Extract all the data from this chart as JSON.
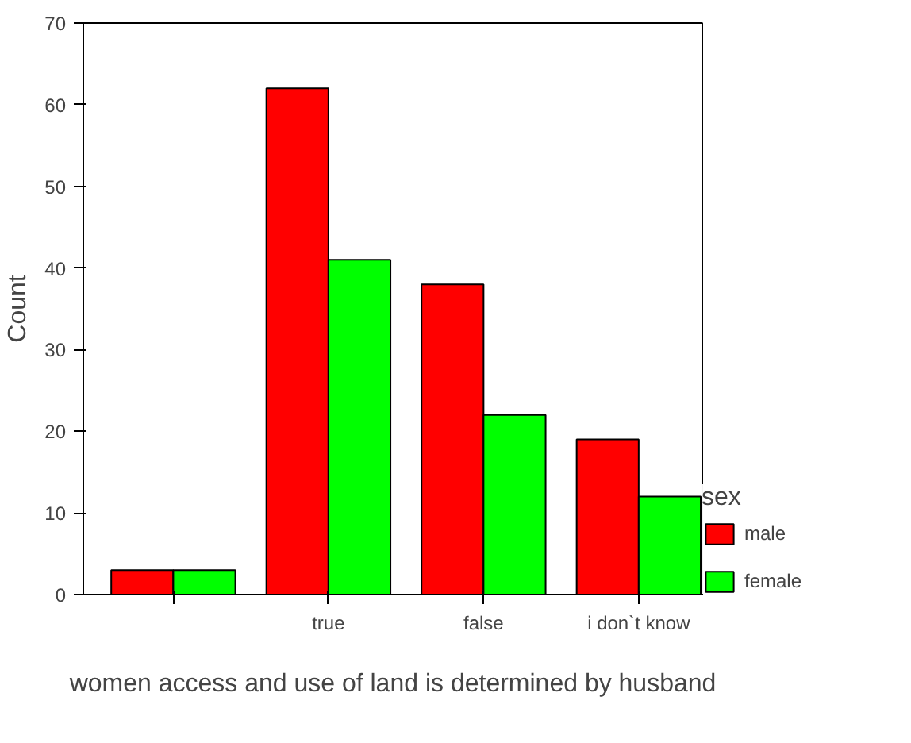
{
  "chart_data": {
    "type": "bar",
    "xlabel": "women access and use of land is determined by husband",
    "ylabel": "Count",
    "legend_title": "sex",
    "categories": [
      null,
      "true",
      "false",
      "i don`t know"
    ],
    "series": [
      {
        "name": "male",
        "color": "#ff0000",
        "values": [
          3,
          62,
          38,
          19
        ]
      },
      {
        "name": "female",
        "color": "#00ff00",
        "values": [
          3,
          41,
          22,
          12
        ]
      }
    ],
    "ylim": [
      0,
      70
    ],
    "yticks": [
      0,
      10,
      20,
      30,
      40,
      50,
      60,
      70
    ],
    "grid": false,
    "legend": "right"
  }
}
